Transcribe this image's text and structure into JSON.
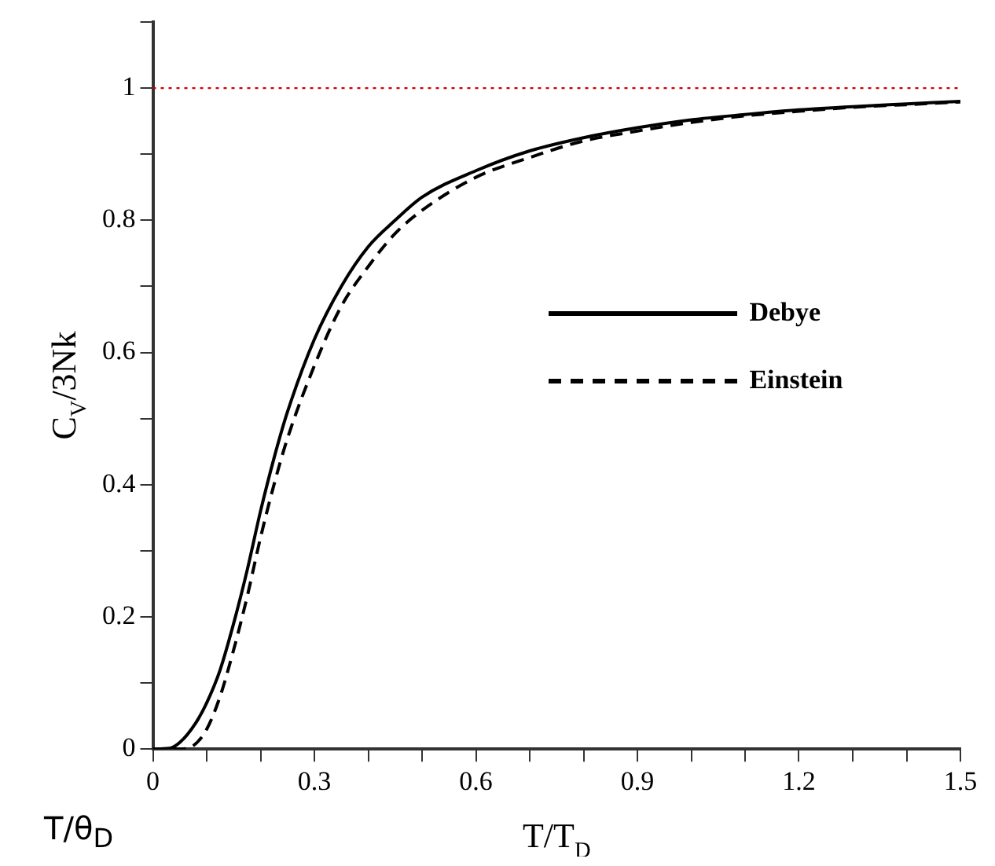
{
  "chart_data": {
    "type": "line",
    "xlabel": "T/T$_{D}$",
    "ylabel": "C$_{V}$/3Nk",
    "annotations": [
      "T/θ$_{D}$"
    ],
    "xlim": [
      0,
      1.5
    ],
    "ylim": [
      0,
      1.1
    ],
    "xticks": [
      0,
      {
        "value": 0.1,
        "label": null
      },
      {
        "value": 0.2,
        "label": null
      },
      0.3,
      {
        "value": 0.4,
        "label": null
      },
      {
        "value": 0.5,
        "label": null
      },
      0.6,
      {
        "value": 0.7,
        "label": null
      },
      {
        "value": 0.8,
        "label": null
      },
      0.9,
      {
        "value": 1.0,
        "label": null
      },
      {
        "value": 1.1,
        "label": null
      },
      1.2,
      {
        "value": 1.3,
        "label": null
      },
      {
        "value": 1.4,
        "label": null
      },
      1.5
    ],
    "yticks": [
      0,
      {
        "value": 0.1,
        "label": null
      },
      0.2,
      {
        "value": 0.3,
        "label": null
      },
      0.4,
      {
        "value": 0.5,
        "label": null
      },
      0.6,
      {
        "value": 0.7,
        "label": null
      },
      0.8,
      {
        "value": 0.9,
        "label": null
      },
      1,
      {
        "value": 1.1,
        "label": null
      }
    ],
    "grid": false,
    "legend": "right",
    "marker": "none",
    "ref_lines": [
      {
        "axis": "y",
        "value": 1,
        "color": "#cc0000",
        "line_style": "dotted"
      }
    ],
    "series": [
      {
        "name": "Debye",
        "color": "#000000",
        "line_style": "solid",
        "x": [
          0,
          0.03,
          0.05,
          0.08,
          0.1,
          0.125,
          0.15,
          0.175,
          0.2,
          0.225,
          0.25,
          0.3,
          0.35,
          0.4,
          0.45,
          0.5,
          0.6,
          0.7,
          0.8,
          0.9,
          1.0,
          1.1,
          1.2,
          1.3,
          1.4,
          1.5
        ],
        "values": [
          0,
          0.001,
          0.01,
          0.04,
          0.07,
          0.12,
          0.19,
          0.27,
          0.36,
          0.44,
          0.51,
          0.62,
          0.7,
          0.76,
          0.8,
          0.835,
          0.875,
          0.905,
          0.925,
          0.94,
          0.952,
          0.96,
          0.967,
          0.972,
          0.976,
          0.98
        ]
      },
      {
        "name": "Einstein",
        "color": "#000000",
        "line_style": "dashed",
        "x": [
          0,
          0.05,
          0.075,
          0.1,
          0.125,
          0.15,
          0.175,
          0.2,
          0.225,
          0.25,
          0.3,
          0.35,
          0.4,
          0.45,
          0.5,
          0.6,
          0.7,
          0.8,
          0.9,
          1.0,
          1.1,
          1.2,
          1.3,
          1.4,
          1.5
        ],
        "values": [
          0,
          0,
          0.005,
          0.03,
          0.08,
          0.15,
          0.23,
          0.32,
          0.4,
          0.47,
          0.58,
          0.67,
          0.73,
          0.78,
          0.815,
          0.865,
          0.895,
          0.92,
          0.935,
          0.948,
          0.958,
          0.965,
          0.971,
          0.975,
          0.979
        ]
      }
    ]
  }
}
